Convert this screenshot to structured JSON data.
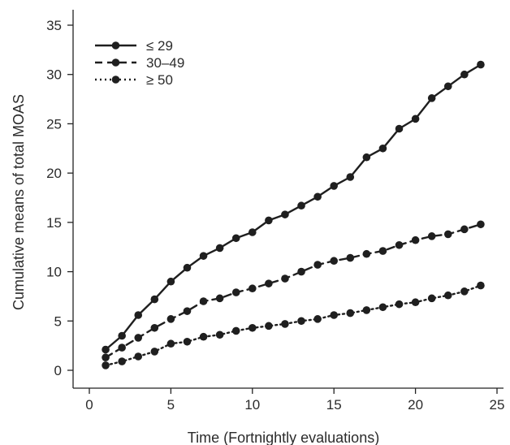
{
  "chart_data": {
    "type": "line",
    "title": "",
    "xlabel": "Time (Fortnightly evaluations)",
    "ylabel": "Cumulative means of total MOAS",
    "xlim": [
      -1,
      26
    ],
    "ylim": [
      -1.5,
      36.5
    ],
    "xticks": [
      0,
      5,
      10,
      15,
      20,
      25
    ],
    "yticks": [
      0,
      5,
      10,
      15,
      20,
      25,
      30,
      35
    ],
    "xtick_labels": [
      "0",
      "5",
      "10",
      "15",
      "20",
      "25"
    ],
    "ytick_labels": [
      "0",
      "5",
      "10",
      "15",
      "20",
      "25",
      "30",
      "35"
    ],
    "grid": false,
    "legend_position": "top-left",
    "series": [
      {
        "name": "≤ 29",
        "line_style": "solid",
        "x": [
          1,
          2,
          3,
          4,
          5,
          6,
          7,
          8,
          9,
          10,
          11,
          12,
          13,
          14,
          15,
          16,
          17,
          18,
          19,
          20,
          21,
          22,
          23,
          24
        ],
        "y": [
          2.1,
          3.5,
          5.6,
          7.2,
          9.0,
          10.4,
          11.6,
          12.4,
          13.4,
          14.0,
          15.2,
          15.8,
          16.7,
          17.6,
          18.7,
          19.6,
          21.6,
          22.5,
          24.5,
          25.5,
          27.6,
          28.8,
          30.0,
          31.0
        ]
      },
      {
        "name": "30–49",
        "line_style": "dashed",
        "x": [
          1,
          2,
          3,
          4,
          5,
          6,
          7,
          8,
          9,
          10,
          11,
          12,
          13,
          14,
          15,
          16,
          17,
          18,
          19,
          20,
          21,
          22,
          23,
          24
        ],
        "y": [
          1.3,
          2.3,
          3.3,
          4.3,
          5.2,
          6.0,
          7.0,
          7.3,
          7.9,
          8.3,
          8.8,
          9.3,
          10.0,
          10.7,
          11.1,
          11.4,
          11.8,
          12.1,
          12.7,
          13.2,
          13.6,
          13.8,
          14.3,
          14.8
        ]
      },
      {
        "name": "≥ 50",
        "line_style": "dotted",
        "x": [
          1,
          2,
          3,
          4,
          5,
          6,
          7,
          8,
          9,
          10,
          11,
          12,
          13,
          14,
          15,
          16,
          17,
          18,
          19,
          20,
          21,
          22,
          23,
          24
        ],
        "y": [
          0.5,
          0.9,
          1.4,
          1.9,
          2.7,
          2.9,
          3.4,
          3.6,
          4.0,
          4.3,
          4.5,
          4.7,
          5.0,
          5.2,
          5.6,
          5.8,
          6.1,
          6.4,
          6.7,
          6.9,
          7.3,
          7.6,
          8.0,
          8.6
        ]
      }
    ]
  }
}
